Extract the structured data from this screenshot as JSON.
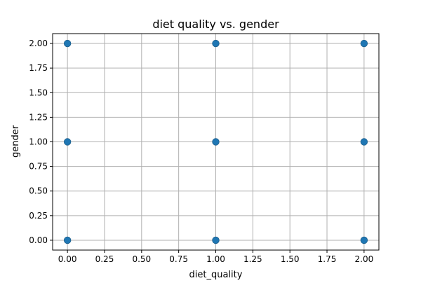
{
  "chart_data": {
    "type": "scatter",
    "title": "diet quality vs. gender",
    "xlabel": "diet_quality",
    "ylabel": "gender",
    "xlim": [
      -0.1,
      2.1
    ],
    "ylim": [
      -0.1,
      2.1
    ],
    "x_ticks": [
      0.0,
      0.25,
      0.5,
      0.75,
      1.0,
      1.25,
      1.5,
      1.75,
      2.0
    ],
    "y_ticks": [
      0.0,
      0.25,
      0.5,
      0.75,
      1.0,
      1.25,
      1.5,
      1.75,
      2.0
    ],
    "x_tick_labels": [
      "0.00",
      "0.25",
      "0.50",
      "0.75",
      "1.00",
      "1.25",
      "1.50",
      "1.75",
      "2.00"
    ],
    "y_tick_labels": [
      "0.00",
      "0.25",
      "0.50",
      "0.75",
      "1.00",
      "1.25",
      "1.50",
      "1.75",
      "2.00"
    ],
    "grid": true,
    "marker_color": "#1f77b4",
    "points": [
      {
        "x": 0,
        "y": 0
      },
      {
        "x": 0,
        "y": 1
      },
      {
        "x": 0,
        "y": 2
      },
      {
        "x": 1,
        "y": 0
      },
      {
        "x": 1,
        "y": 1
      },
      {
        "x": 1,
        "y": 2
      },
      {
        "x": 2,
        "y": 0
      },
      {
        "x": 2,
        "y": 1
      },
      {
        "x": 2,
        "y": 2
      }
    ]
  }
}
